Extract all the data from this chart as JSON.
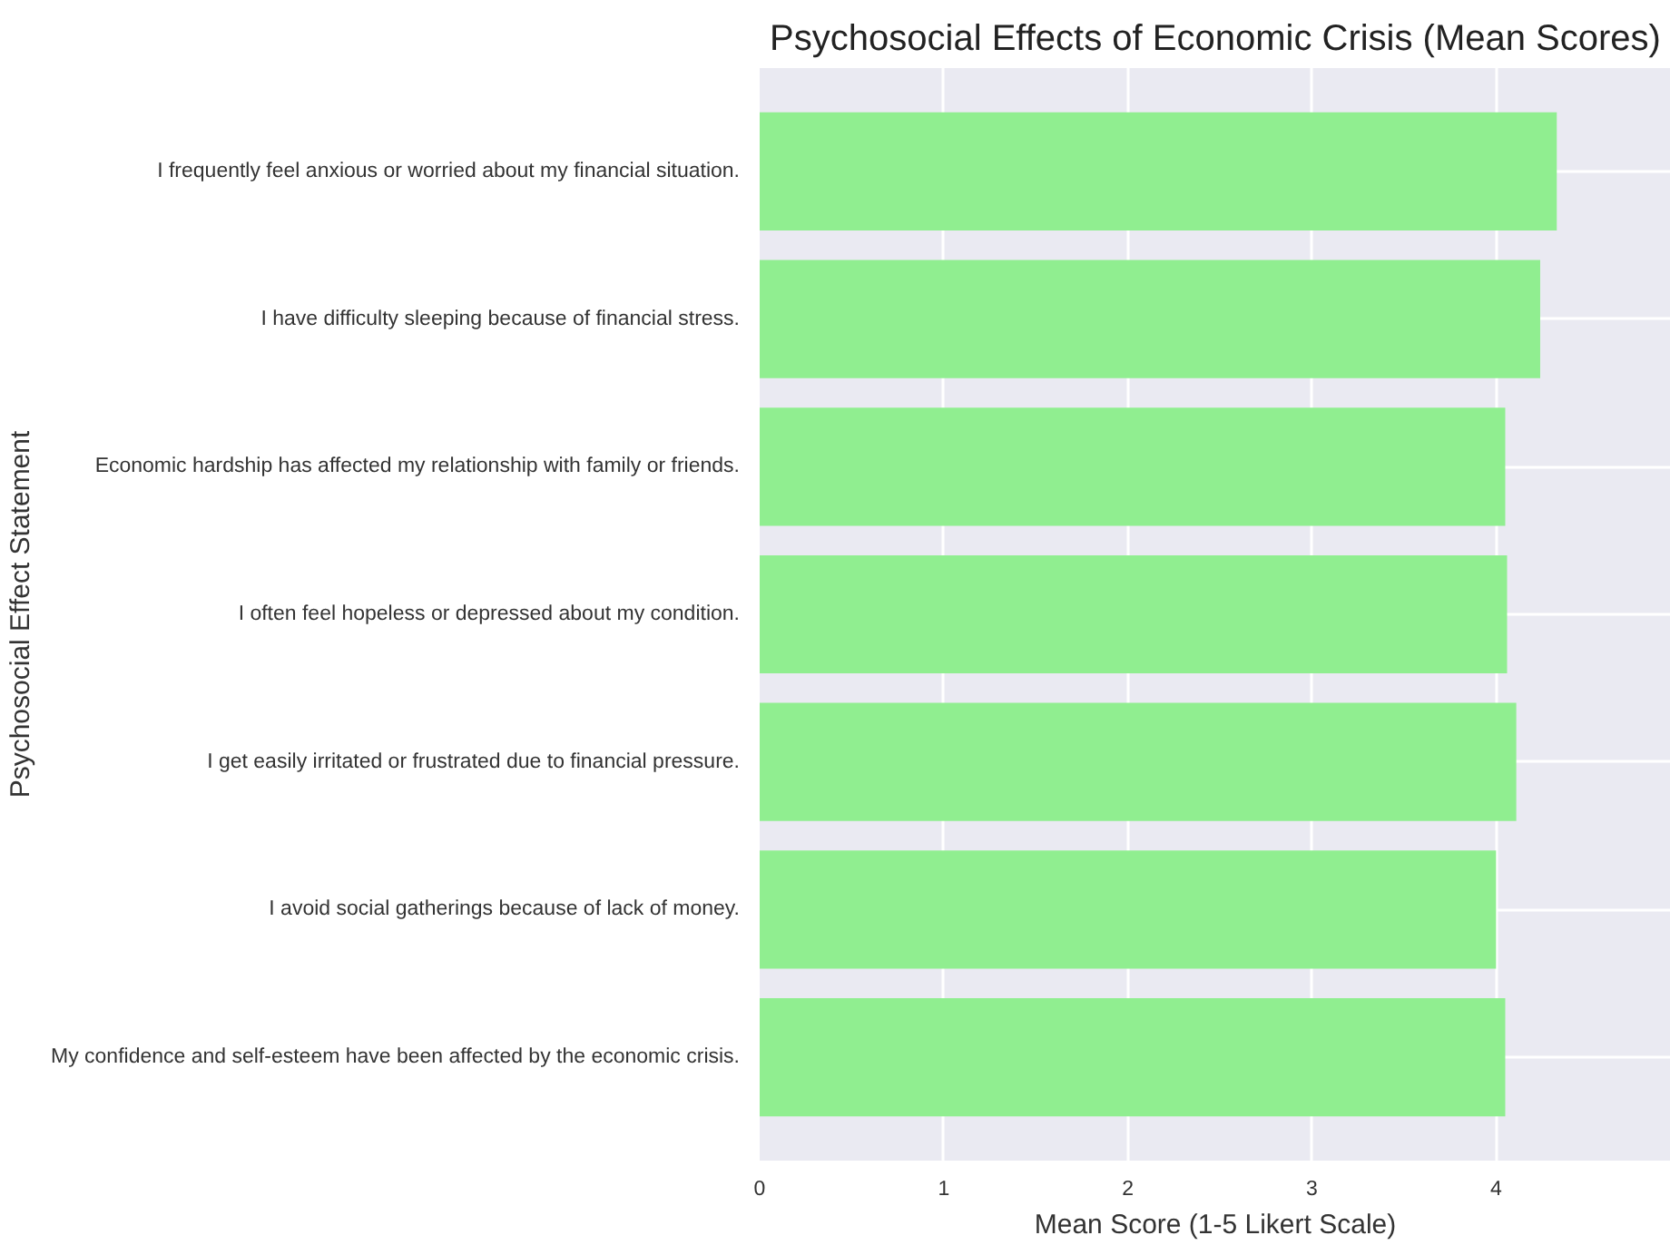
{
  "chart_data": {
    "type": "bar",
    "orientation": "horizontal",
    "title": "Psychosocial Effects of Economic Crisis (Mean Scores)",
    "xlabel": "Mean Score (1-5 Likert Scale)",
    "ylabel": "Psychosocial Effect Statement",
    "categories": [
      "I frequently feel anxious or worried about my financial situation.",
      "I have difficulty sleeping because of financial stress.",
      "Economic hardship has affected my relationship with family or friends.",
      "I often feel hopeless or depressed about my condition.",
      "I get easily irritated or frustrated due to financial pressure.",
      "I avoid social gatherings because of lack of money.",
      "My confidence and self-esteem have been affected by the economic crisis."
    ],
    "values": [
      4.33,
      4.24,
      4.05,
      4.06,
      4.11,
      4.0,
      4.05
    ],
    "color": "#90ee90",
    "xlim": [
      0,
      4.95
    ],
    "xticks": [
      0,
      1,
      2,
      3,
      4
    ],
    "grid": true
  }
}
